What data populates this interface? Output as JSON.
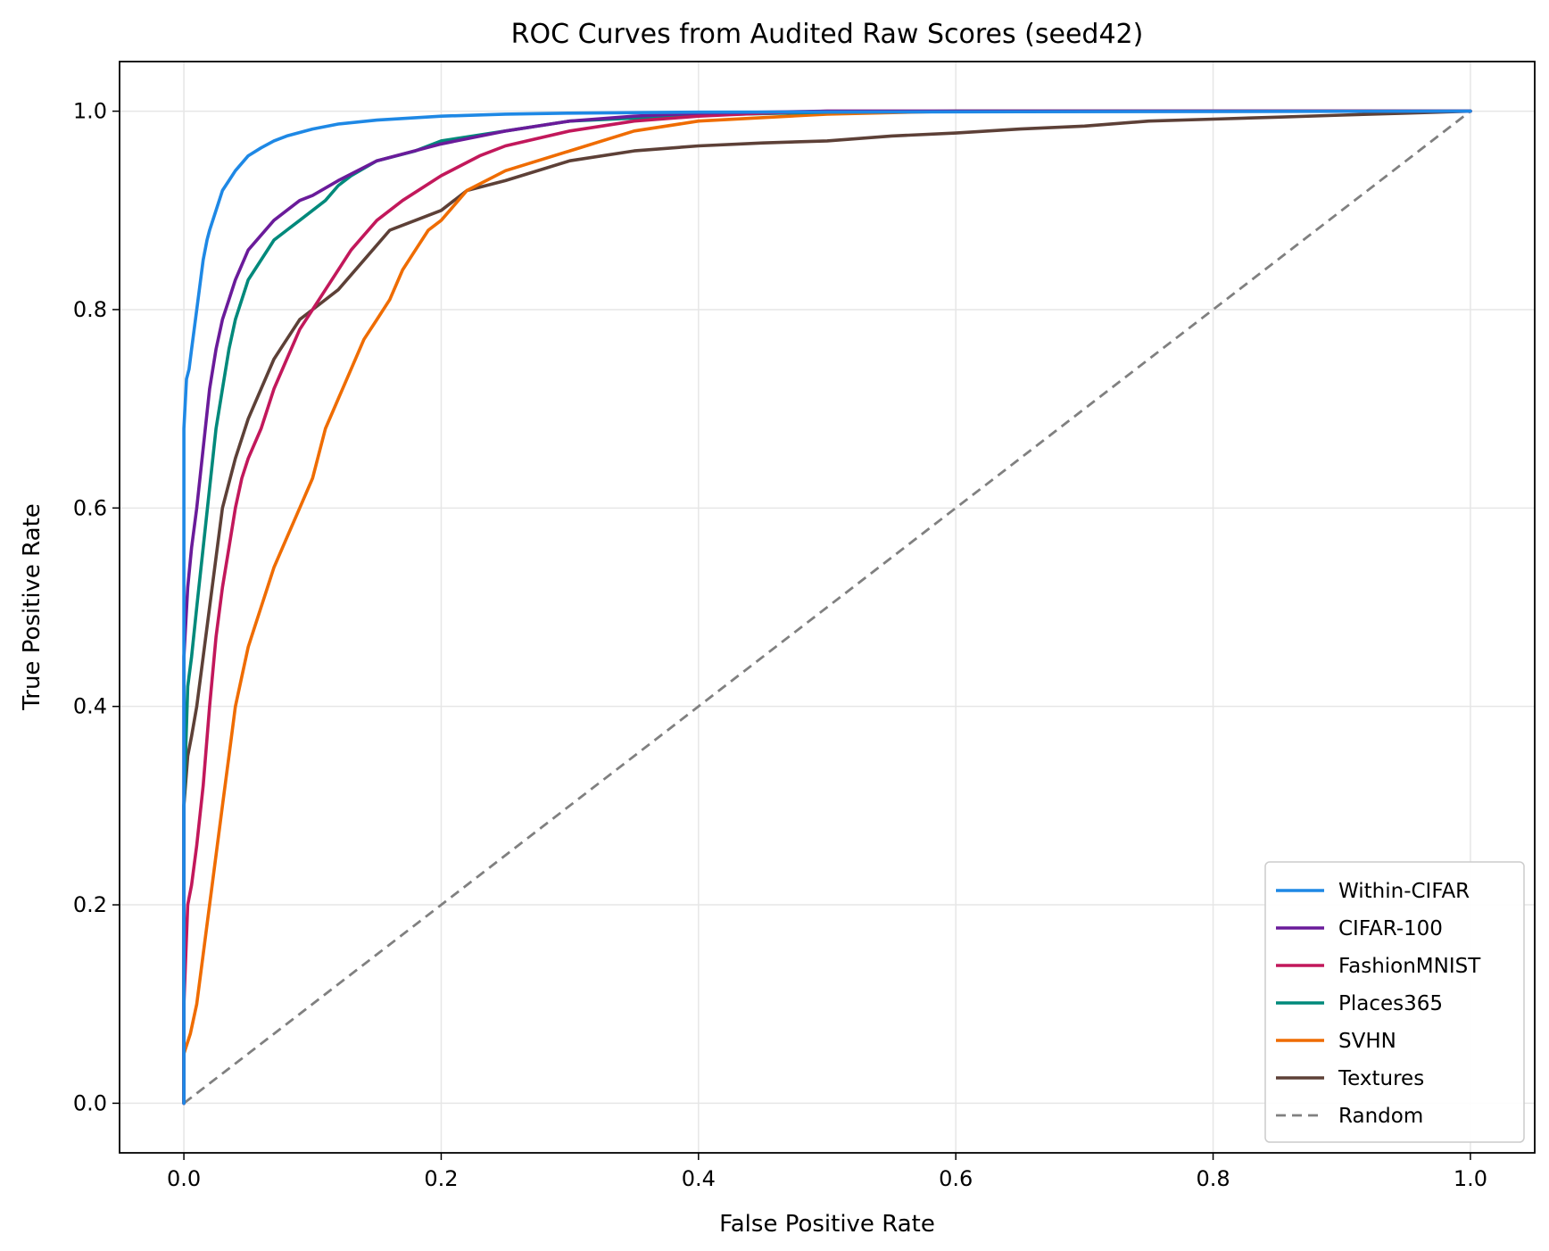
{
  "chart_data": {
    "type": "line",
    "title": "ROC Curves from Audited Raw Scores (seed42)",
    "xlabel": "False Positive Rate",
    "ylabel": "True Positive Rate",
    "xlim": [
      -0.05,
      1.05
    ],
    "ylim": [
      -0.05,
      1.05
    ],
    "x_ticks": [
      0.0,
      0.2,
      0.4,
      0.6,
      0.8,
      1.0
    ],
    "y_ticks": [
      0.0,
      0.2,
      0.4,
      0.6,
      0.8,
      1.0
    ],
    "x_tick_labels": [
      "0.0",
      "0.2",
      "0.4",
      "0.6",
      "0.8",
      "1.0"
    ],
    "y_tick_labels": [
      "0.0",
      "0.2",
      "0.4",
      "0.6",
      "0.8",
      "1.0"
    ],
    "grid": true,
    "legend_position": "lower-right",
    "series": [
      {
        "name": "Within-CIFAR",
        "color": "#1e88e5",
        "style": "solid",
        "x": [
          0,
          0,
          0.002,
          0.004,
          0.006,
          0.008,
          0.01,
          0.012,
          0.015,
          0.018,
          0.02,
          0.025,
          0.03,
          0.035,
          0.04,
          0.05,
          0.06,
          0.07,
          0.08,
          0.1,
          0.12,
          0.15,
          0.2,
          0.25,
          0.3,
          0.4,
          1.0
        ],
        "y": [
          0,
          0.68,
          0.73,
          0.74,
          0.76,
          0.78,
          0.8,
          0.82,
          0.85,
          0.87,
          0.88,
          0.9,
          0.92,
          0.93,
          0.94,
          0.955,
          0.963,
          0.97,
          0.975,
          0.982,
          0.987,
          0.991,
          0.995,
          0.997,
          0.998,
          0.999,
          1.0
        ]
      },
      {
        "name": "CIFAR-100",
        "color": "#6a1b9a",
        "style": "solid",
        "x": [
          0,
          0,
          0.003,
          0.006,
          0.01,
          0.015,
          0.02,
          0.025,
          0.03,
          0.035,
          0.04,
          0.05,
          0.06,
          0.07,
          0.08,
          0.09,
          0.1,
          0.12,
          0.15,
          0.2,
          0.25,
          0.3,
          0.35,
          0.4,
          0.5,
          1.0
        ],
        "y": [
          0,
          0.45,
          0.52,
          0.56,
          0.6,
          0.66,
          0.72,
          0.76,
          0.79,
          0.81,
          0.83,
          0.86,
          0.875,
          0.89,
          0.9,
          0.91,
          0.915,
          0.93,
          0.95,
          0.967,
          0.98,
          0.99,
          0.995,
          0.998,
          1.0,
          1.0
        ]
      },
      {
        "name": "FashionMNIST",
        "color": "#c2185b",
        "style": "solid",
        "x": [
          0,
          0,
          0.003,
          0.006,
          0.01,
          0.015,
          0.02,
          0.025,
          0.03,
          0.035,
          0.04,
          0.045,
          0.05,
          0.06,
          0.07,
          0.08,
          0.09,
          0.1,
          0.11,
          0.12,
          0.13,
          0.14,
          0.15,
          0.17,
          0.2,
          0.23,
          0.25,
          0.3,
          0.35,
          0.4,
          0.45,
          0.5,
          1.0
        ],
        "y": [
          0,
          0.1,
          0.2,
          0.22,
          0.26,
          0.32,
          0.4,
          0.47,
          0.52,
          0.56,
          0.6,
          0.63,
          0.65,
          0.68,
          0.72,
          0.75,
          0.78,
          0.8,
          0.82,
          0.84,
          0.86,
          0.875,
          0.89,
          0.91,
          0.935,
          0.955,
          0.965,
          0.98,
          0.99,
          0.995,
          0.998,
          1.0,
          1.0
        ]
      },
      {
        "name": "Places365",
        "color": "#00897b",
        "style": "solid",
        "x": [
          0,
          0,
          0.003,
          0.006,
          0.01,
          0.015,
          0.02,
          0.025,
          0.03,
          0.035,
          0.04,
          0.05,
          0.06,
          0.07,
          0.08,
          0.09,
          0.1,
          0.11,
          0.12,
          0.13,
          0.15,
          0.18,
          0.2,
          0.25,
          0.3,
          0.4,
          0.5,
          0.6,
          1.0
        ],
        "y": [
          0,
          0.3,
          0.42,
          0.45,
          0.5,
          0.56,
          0.62,
          0.68,
          0.72,
          0.76,
          0.79,
          0.83,
          0.85,
          0.87,
          0.88,
          0.89,
          0.9,
          0.91,
          0.925,
          0.935,
          0.95,
          0.96,
          0.97,
          0.98,
          0.99,
          0.996,
          0.999,
          1.0,
          1.0
        ]
      },
      {
        "name": "SVHN",
        "color": "#ef6c00",
        "style": "solid",
        "x": [
          0,
          0,
          0.005,
          0.01,
          0.015,
          0.02,
          0.025,
          0.03,
          0.035,
          0.04,
          0.045,
          0.05,
          0.055,
          0.06,
          0.065,
          0.07,
          0.08,
          0.09,
          0.1,
          0.11,
          0.12,
          0.13,
          0.14,
          0.15,
          0.16,
          0.17,
          0.18,
          0.19,
          0.2,
          0.22,
          0.25,
          0.3,
          0.35,
          0.4,
          0.5,
          0.6,
          1.0
        ],
        "y": [
          0,
          0.05,
          0.07,
          0.1,
          0.15,
          0.2,
          0.25,
          0.3,
          0.35,
          0.4,
          0.43,
          0.46,
          0.48,
          0.5,
          0.52,
          0.54,
          0.57,
          0.6,
          0.63,
          0.68,
          0.71,
          0.74,
          0.77,
          0.79,
          0.81,
          0.84,
          0.86,
          0.88,
          0.89,
          0.92,
          0.94,
          0.96,
          0.98,
          0.99,
          0.997,
          1.0,
          1.0
        ]
      },
      {
        "name": "Textures",
        "color": "#5d4037",
        "style": "solid",
        "x": [
          0,
          0,
          0.003,
          0.006,
          0.01,
          0.015,
          0.02,
          0.025,
          0.03,
          0.04,
          0.05,
          0.06,
          0.07,
          0.08,
          0.09,
          0.1,
          0.12,
          0.14,
          0.16,
          0.18,
          0.2,
          0.22,
          0.25,
          0.3,
          0.35,
          0.4,
          0.45,
          0.5,
          0.55,
          0.6,
          0.65,
          0.7,
          0.75,
          0.8,
          0.85,
          0.9,
          0.95,
          1.0
        ],
        "y": [
          0,
          0.3,
          0.35,
          0.37,
          0.4,
          0.45,
          0.5,
          0.55,
          0.6,
          0.65,
          0.69,
          0.72,
          0.75,
          0.77,
          0.79,
          0.8,
          0.82,
          0.85,
          0.88,
          0.89,
          0.9,
          0.92,
          0.93,
          0.95,
          0.96,
          0.965,
          0.968,
          0.97,
          0.975,
          0.978,
          0.982,
          0.985,
          0.99,
          0.992,
          0.994,
          0.996,
          0.998,
          1.0
        ]
      },
      {
        "name": "Random",
        "color": "#808080",
        "style": "dashed",
        "x": [
          0,
          1
        ],
        "y": [
          0,
          1
        ]
      }
    ]
  }
}
